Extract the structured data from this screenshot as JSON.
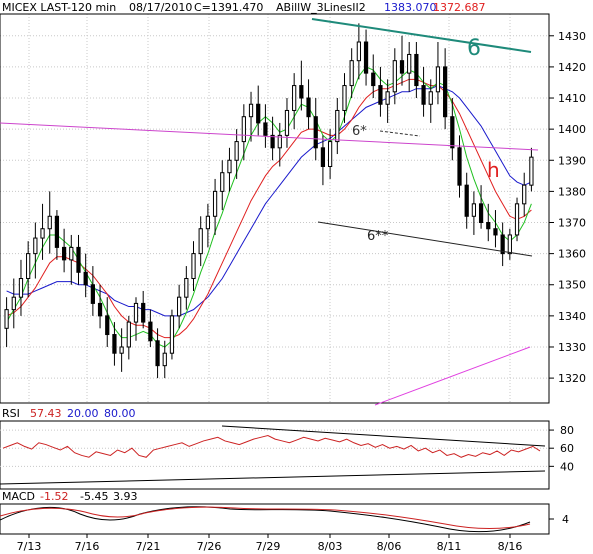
{
  "header": {
    "instrument": "MICEX LAST-120 min",
    "date": "08/17/2010",
    "close": "C=1391.470",
    "indicator": "ABillW_3LinesII2",
    "value_blue": "1383.070",
    "value_red": "1372.687"
  },
  "chart_data": [
    {
      "panel": "price",
      "type": "candlestick",
      "x_ticks": [
        "7/13",
        "7/16",
        "7/21",
        "7/26",
        "7/29",
        "8/03",
        "8/06",
        "8/11",
        "8/16"
      ],
      "ylim": [
        1312,
        1437
      ],
      "y_ticks": [
        1320,
        1330,
        1340,
        1350,
        1360,
        1370,
        1380,
        1390,
        1400,
        1410,
        1420,
        1430
      ],
      "grid": true,
      "candles": [
        [
          1336,
          1346,
          1330,
          1342
        ],
        [
          1342,
          1352,
          1336,
          1346
        ],
        [
          1346,
          1358,
          1340,
          1352
        ],
        [
          1352,
          1364,
          1346,
          1360
        ],
        [
          1360,
          1370,
          1352,
          1365
        ],
        [
          1365,
          1376,
          1358,
          1368
        ],
        [
          1368,
          1380,
          1360,
          1372
        ],
        [
          1372,
          1374,
          1358,
          1362
        ],
        [
          1362,
          1368,
          1354,
          1358
        ],
        [
          1358,
          1366,
          1350,
          1362
        ],
        [
          1362,
          1366,
          1350,
          1354
        ],
        [
          1354,
          1360,
          1346,
          1350
        ],
        [
          1350,
          1356,
          1340,
          1344
        ],
        [
          1344,
          1350,
          1336,
          1340
        ],
        [
          1340,
          1346,
          1330,
          1334
        ],
        [
          1334,
          1338,
          1324,
          1328
        ],
        [
          1328,
          1336,
          1322,
          1330
        ],
        [
          1330,
          1340,
          1326,
          1338
        ],
        [
          1338,
          1346,
          1332,
          1344
        ],
        [
          1344,
          1348,
          1336,
          1338
        ],
        [
          1338,
          1342,
          1330,
          1332
        ],
        [
          1332,
          1336,
          1320,
          1324
        ],
        [
          1324,
          1332,
          1320,
          1328
        ],
        [
          1328,
          1342,
          1326,
          1340
        ],
        [
          1340,
          1350,
          1336,
          1346
        ],
        [
          1346,
          1356,
          1342,
          1352
        ],
        [
          1352,
          1364,
          1348,
          1360
        ],
        [
          1360,
          1372,
          1356,
          1368
        ],
        [
          1368,
          1376,
          1362,
          1372
        ],
        [
          1372,
          1384,
          1366,
          1380
        ],
        [
          1380,
          1390,
          1374,
          1386
        ],
        [
          1386,
          1394,
          1380,
          1390
        ],
        [
          1390,
          1400,
          1384,
          1396
        ],
        [
          1396,
          1408,
          1390,
          1404
        ],
        [
          1404,
          1412,
          1396,
          1408
        ],
        [
          1408,
          1414,
          1398,
          1402
        ],
        [
          1402,
          1408,
          1394,
          1398
        ],
        [
          1398,
          1404,
          1390,
          1394
        ],
        [
          1394,
          1402,
          1388,
          1398
        ],
        [
          1398,
          1410,
          1394,
          1406
        ],
        [
          1406,
          1418,
          1400,
          1414
        ],
        [
          1414,
          1422,
          1406,
          1410
        ],
        [
          1410,
          1416,
          1400,
          1404
        ],
        [
          1404,
          1410,
          1390,
          1394
        ],
        [
          1394,
          1398,
          1382,
          1388
        ],
        [
          1388,
          1400,
          1384,
          1396
        ],
        [
          1396,
          1410,
          1392,
          1406
        ],
        [
          1406,
          1418,
          1402,
          1414
        ],
        [
          1414,
          1426,
          1410,
          1422
        ],
        [
          1422,
          1434,
          1416,
          1428
        ],
        [
          1428,
          1432,
          1414,
          1418
        ],
        [
          1418,
          1424,
          1410,
          1414
        ],
        [
          1414,
          1420,
          1404,
          1408
        ],
        [
          1408,
          1416,
          1402,
          1412
        ],
        [
          1412,
          1426,
          1408,
          1422
        ],
        [
          1422,
          1430,
          1414,
          1418
        ],
        [
          1418,
          1428,
          1412,
          1424
        ],
        [
          1424,
          1428,
          1410,
          1414
        ],
        [
          1414,
          1420,
          1404,
          1408
        ],
        [
          1408,
          1416,
          1402,
          1412
        ],
        [
          1412,
          1428,
          1408,
          1420
        ],
        [
          1420,
          1426,
          1400,
          1404
        ],
        [
          1404,
          1410,
          1390,
          1394
        ],
        [
          1394,
          1398,
          1378,
          1382
        ],
        [
          1382,
          1386,
          1368,
          1372
        ],
        [
          1372,
          1380,
          1366,
          1376
        ],
        [
          1376,
          1382,
          1368,
          1370
        ],
        [
          1370,
          1376,
          1364,
          1368
        ],
        [
          1368,
          1374,
          1362,
          1366
        ],
        [
          1366,
          1370,
          1356,
          1360
        ],
        [
          1360,
          1368,
          1358,
          1366
        ],
        [
          1366,
          1378,
          1364,
          1376
        ],
        [
          1376,
          1386,
          1372,
          1382
        ],
        [
          1382,
          1394,
          1380,
          1391
        ]
      ],
      "moving_averages": [
        {
          "color": "#1a1acc",
          "values": [
            1348,
            1347,
            1347,
            1347,
            1348,
            1349,
            1350,
            1351,
            1351,
            1351,
            1350,
            1350,
            1349,
            1348,
            1347,
            1345,
            1344,
            1343,
            1343,
            1342,
            1342,
            1341,
            1340,
            1340,
            1340,
            1341,
            1342,
            1344,
            1346,
            1349,
            1352,
            1356,
            1360,
            1364,
            1368,
            1372,
            1376,
            1379,
            1382,
            1385,
            1388,
            1391,
            1393,
            1395,
            1396,
            1397,
            1399,
            1401,
            1403,
            1405,
            1407,
            1408,
            1409,
            1410,
            1411,
            1412,
            1412,
            1413,
            1413,
            1413,
            1414,
            1413,
            1412,
            1410,
            1407,
            1404,
            1401,
            1397,
            1393,
            1389,
            1385,
            1383,
            1382,
            1383
          ]
        },
        {
          "color": "#e02020",
          "values": [
            1340,
            1341,
            1343,
            1346,
            1349,
            1353,
            1357,
            1359,
            1359,
            1358,
            1357,
            1355,
            1353,
            1350,
            1347,
            1343,
            1340,
            1338,
            1337,
            1337,
            1336,
            1334,
            1333,
            1333,
            1334,
            1336,
            1339,
            1343,
            1347,
            1352,
            1357,
            1362,
            1367,
            1372,
            1377,
            1381,
            1385,
            1388,
            1390,
            1393,
            1396,
            1399,
            1400,
            1400,
            1399,
            1398,
            1398,
            1400,
            1403,
            1407,
            1410,
            1412,
            1413,
            1413,
            1414,
            1415,
            1416,
            1416,
            1415,
            1414,
            1414,
            1412,
            1409,
            1405,
            1400,
            1395,
            1390,
            1385,
            1380,
            1376,
            1372,
            1371,
            1372,
            1374
          ]
        },
        {
          "color": "#20c020",
          "values": [
            1338,
            1342,
            1346,
            1352,
            1357,
            1362,
            1366,
            1366,
            1364,
            1362,
            1358,
            1354,
            1350,
            1346,
            1341,
            1336,
            1333,
            1333,
            1334,
            1335,
            1334,
            1331,
            1330,
            1332,
            1336,
            1341,
            1347,
            1354,
            1360,
            1367,
            1373,
            1380,
            1386,
            1392,
            1398,
            1402,
            1404,
            1402,
            1399,
            1400,
            1404,
            1408,
            1407,
            1403,
            1398,
            1396,
            1398,
            1404,
            1411,
            1417,
            1420,
            1419,
            1416,
            1414,
            1415,
            1417,
            1419,
            1418,
            1415,
            1413,
            1415,
            1414,
            1408,
            1400,
            1391,
            1384,
            1378,
            1373,
            1370,
            1366,
            1364,
            1366,
            1370,
            1376
          ]
        }
      ],
      "trendlines": [
        {
          "label": "6",
          "color": "#1e8a7a"
        },
        {
          "label": "6*",
          "color": "#333333"
        },
        {
          "label": "6**",
          "color": "#222222"
        },
        {
          "label": "",
          "color": "#cc44cc"
        },
        {
          "label": "",
          "color": "#e040e0"
        }
      ],
      "annotations": [
        {
          "text": "h",
          "color": "#e02020"
        }
      ]
    },
    {
      "panel": "rsi",
      "type": "line",
      "label": "RSI",
      "value": "57.43",
      "levels": [
        "20.00",
        "80.00"
      ],
      "ylim": [
        15,
        90
      ],
      "y_ticks": [
        40,
        60,
        80
      ],
      "color": "#cc2222",
      "values": [
        60,
        63,
        66,
        62,
        59,
        66,
        64,
        61,
        58,
        62,
        55,
        52,
        50,
        56,
        54,
        52,
        58,
        55,
        60,
        52,
        50,
        58,
        60,
        62,
        64,
        66,
        62,
        65,
        68,
        70,
        72,
        68,
        66,
        64,
        67,
        70,
        72,
        74,
        70,
        68,
        66,
        69,
        72,
        70,
        68,
        71,
        69,
        67,
        70,
        66,
        63,
        65,
        61,
        64,
        60,
        62,
        59,
        63,
        57,
        60,
        55,
        58,
        52,
        54,
        50,
        53,
        51,
        55,
        53,
        57,
        52,
        58,
        56,
        59,
        62,
        57
      ]
    },
    {
      "panel": "macd",
      "type": "line",
      "label": "MACD",
      "values_text": [
        "-1.52",
        "-5.45",
        "3.93"
      ],
      "y_ticks": [
        4
      ],
      "ylim": [
        -9,
        10
      ],
      "color": "#cc2222"
    }
  ]
}
